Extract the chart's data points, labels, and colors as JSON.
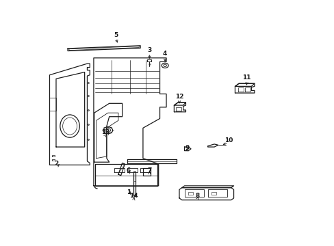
{
  "bg_color": "#ffffff",
  "line_color": "#1a1a1a",
  "figsize": [
    4.89,
    3.6
  ],
  "dpi": 100,
  "label_specs": [
    [
      1,
      0.335,
      0.115,
      0.345,
      0.155
    ],
    [
      2,
      0.055,
      0.265,
      0.075,
      0.295
    ],
    [
      3,
      0.415,
      0.865,
      0.415,
      0.835
    ],
    [
      4,
      0.475,
      0.845,
      0.475,
      0.82
    ],
    [
      5,
      0.285,
      0.945,
      0.295,
      0.92
    ],
    [
      6,
      0.335,
      0.23,
      0.34,
      0.255
    ],
    [
      7,
      0.415,
      0.23,
      0.415,
      0.252
    ],
    [
      8,
      0.6,
      0.095,
      0.605,
      0.118
    ],
    [
      9,
      0.56,
      0.35,
      0.563,
      0.375
    ],
    [
      10,
      0.72,
      0.39,
      0.69,
      0.39
    ],
    [
      11,
      0.79,
      0.72,
      0.79,
      0.695
    ],
    [
      12,
      0.53,
      0.62,
      0.53,
      0.598
    ],
    [
      13,
      0.245,
      0.43,
      0.255,
      0.455
    ],
    [
      14,
      0.355,
      0.095,
      0.358,
      0.125
    ]
  ]
}
